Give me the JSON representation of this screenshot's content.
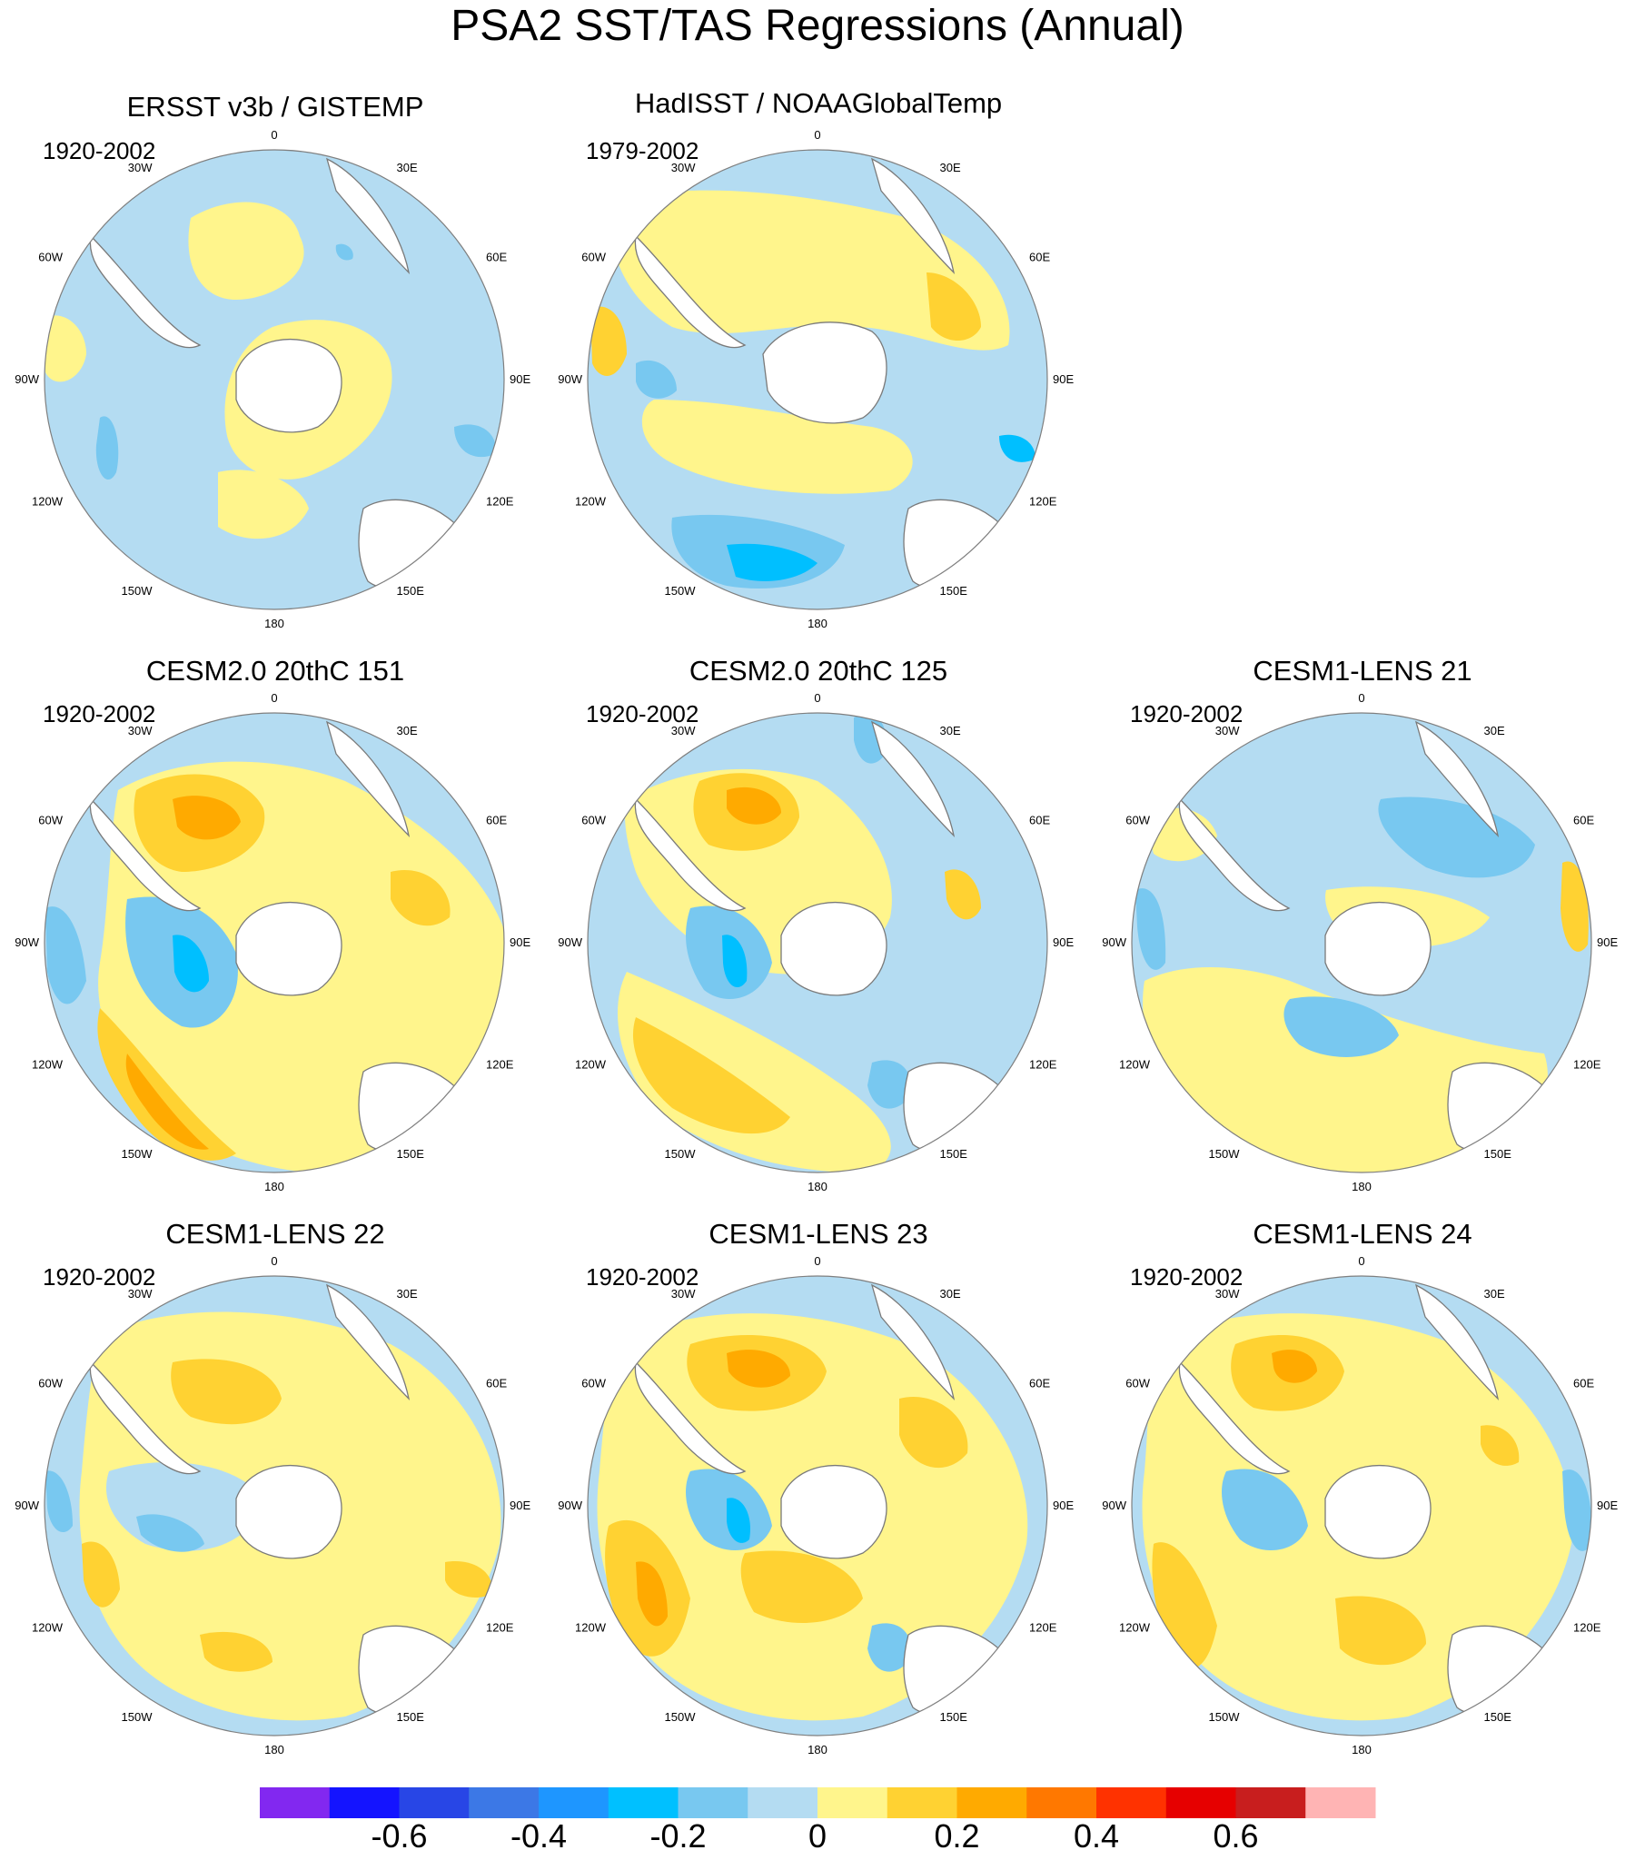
{
  "title": "PSA2 SST/TAS Regressions (Annual)",
  "colors": {
    "ocean": "#b4dcf2",
    "land": "#ffffff",
    "coast": "#7a7a7a",
    "rim": "#7f7f7f",
    "c_neg3": "#1f9cff",
    "c_neg2": "#00bfff",
    "c_neg1": "#78c8f0",
    "c_neg0": "#b4dcf2",
    "c_pos0": "#fff58c",
    "c_pos1": "#ffd232",
    "c_pos2": "#ffaa00",
    "c_neg5": "#3c78e6"
  },
  "longitude_labels": [
    "0",
    "30E",
    "60E",
    "90E",
    "120E",
    "150E",
    "180",
    "150W",
    "120W",
    "90W",
    "60W",
    "30W"
  ],
  "panels": [
    {
      "title": "ERSST v3b / GISTEMP",
      "period": "1920-2002"
    },
    {
      "title": "HadISST / NOAAGlobalTemp",
      "period": "1979-2002"
    },
    {
      "title": "CESM2.0 20thC 151",
      "period": "1920-2002"
    },
    {
      "title": "CESM2.0 20thC 125",
      "period": "1920-2002"
    },
    {
      "title": "CESM1-LENS 21",
      "period": "1920-2002"
    },
    {
      "title": "CESM1-LENS 22",
      "period": "1920-2002"
    },
    {
      "title": "CESM1-LENS 23",
      "period": "1920-2002"
    },
    {
      "title": "CESM1-LENS 24",
      "period": "1920-2002"
    }
  ],
  "colorbar": {
    "colors": [
      "#8228f0",
      "#1414ff",
      "#2846e6",
      "#3c78e6",
      "#1e96ff",
      "#00c0ff",
      "#78c8f0",
      "#b4dcf2",
      "#fff58c",
      "#ffd232",
      "#ffaa00",
      "#ff7800",
      "#ff3200",
      "#e60000",
      "#c81e1e",
      "#ffb4b4"
    ],
    "labels": [
      "-0.6",
      "-0.4",
      "-0.2",
      "0",
      "0.2",
      "0.4",
      "0.6"
    ],
    "label_values": [
      -0.6,
      -0.4,
      -0.2,
      0,
      0.2,
      0.4,
      0.6
    ],
    "min": -0.8,
    "max": 0.8
  }
}
